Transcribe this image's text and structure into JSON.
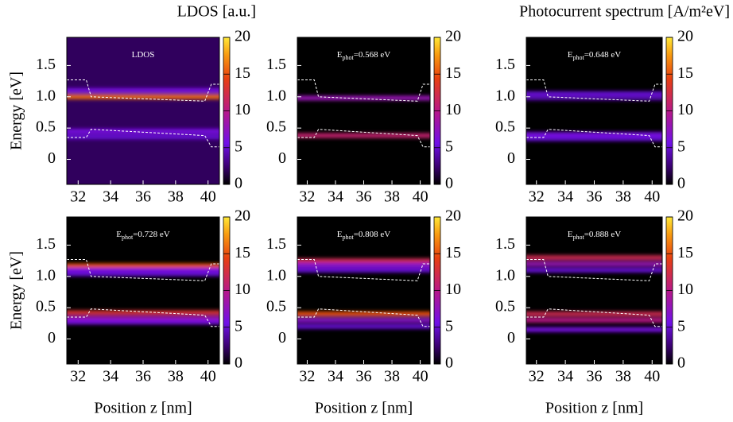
{
  "chart_data": [
    {
      "type": "heatmap",
      "title": "LDOS [a.u.]",
      "annotation": [
        "LDOS"
      ],
      "ylabel": "Energy [eV]",
      "xlim": [
        31.3,
        40.7
      ],
      "ylim": [
        -0.4,
        1.95
      ],
      "clim": [
        0,
        20
      ],
      "xticks": [
        32,
        34,
        36,
        38,
        40
      ],
      "yticks": [
        0,
        0.5,
        {
          "value": 1,
          "label": "1.0"
        },
        1.5
      ],
      "cticks": [
        0,
        5,
        10,
        15,
        20
      ],
      "base": 2,
      "bands": [
        {
          "y": 1.1,
          "value": 6
        },
        {
          "y": 1.0,
          "value": 16
        },
        {
          "y": 0.45,
          "value": 6
        },
        {
          "y": 0.36,
          "value": 5
        }
      ],
      "band_edges": {
        "x": [
          31.3,
          32.5,
          32.8,
          39.8,
          40.2,
          40.7
        ],
        "conduction": [
          1.27,
          1.27,
          1.0,
          0.93,
          1.2,
          1.2
        ],
        "valence": [
          0.35,
          0.35,
          0.48,
          0.38,
          0.2,
          0.2
        ]
      }
    },
    {
      "type": "heatmap",
      "annotation": [
        "E",
        "phot",
        "=0.568 eV"
      ],
      "xlim": [
        31.3,
        40.7
      ],
      "ylim": [
        -0.4,
        1.95
      ],
      "clim": [
        0,
        20
      ],
      "xticks": [
        32,
        34,
        36,
        38,
        40
      ],
      "yticks": [
        0,
        0.5,
        {
          "value": 1,
          "label": "1.0"
        },
        1.5
      ],
      "cticks": [
        0,
        5,
        10,
        15,
        20
      ],
      "base": 0,
      "bands": [
        {
          "y": 0.98,
          "value": 8
        },
        {
          "y": 0.38,
          "value": 11
        }
      ],
      "band_edges": {
        "x": [
          31.3,
          32.5,
          32.8,
          39.8,
          40.2,
          40.7
        ],
        "conduction": [
          1.27,
          1.27,
          1.0,
          0.93,
          1.2,
          1.2
        ],
        "valence": [
          0.35,
          0.35,
          0.48,
          0.38,
          0.2,
          0.2
        ]
      }
    },
    {
      "type": "heatmap",
      "title": "Photocurrent spectrum [A/m²eV]",
      "annotation": [
        "E",
        "phot",
        "=0.648 eV"
      ],
      "xlim": [
        31.3,
        40.7
      ],
      "ylim": [
        -0.4,
        1.95
      ],
      "clim": [
        0,
        20
      ],
      "xticks": [
        32,
        34,
        36,
        38,
        40
      ],
      "yticks": [
        0,
        0.5,
        {
          "value": 1,
          "label": "1.0"
        },
        1.5
      ],
      "cticks": [
        0,
        5,
        10,
        15,
        20
      ],
      "base": 0,
      "bands": [
        {
          "y": 1.05,
          "value": 5
        },
        {
          "y": 0.98,
          "value": 4
        },
        {
          "y": 0.4,
          "value": 6
        },
        {
          "y": 0.33,
          "value": 5
        }
      ],
      "band_edges": {
        "x": [
          31.3,
          32.5,
          32.8,
          39.8,
          40.2,
          40.7
        ],
        "conduction": [
          1.27,
          1.27,
          1.0,
          0.93,
          1.2,
          1.2
        ],
        "valence": [
          0.35,
          0.35,
          0.48,
          0.38,
          0.2,
          0.2
        ]
      }
    },
    {
      "type": "heatmap",
      "annotation": [
        "E",
        "phot",
        "=0.728 eV"
      ],
      "ylabel": "Energy [eV]",
      "xlabel": "Position z [nm]",
      "xlim": [
        31.3,
        40.7
      ],
      "ylim": [
        -0.4,
        1.95
      ],
      "clim": [
        0,
        20
      ],
      "xticks": [
        32,
        34,
        36,
        38,
        40
      ],
      "yticks": [
        0,
        0.5,
        {
          "value": 1,
          "label": "1.0"
        },
        1.5
      ],
      "cticks": [
        0,
        5,
        10,
        15,
        20
      ],
      "base": 0,
      "bands": [
        {
          "y": 1.17,
          "value": 15
        },
        {
          "y": 1.1,
          "value": 6
        },
        {
          "y": 1.04,
          "value": 5
        },
        {
          "y": 0.42,
          "value": 13
        },
        {
          "y": 0.33,
          "value": 8
        },
        {
          "y": 0.27,
          "value": 6
        }
      ],
      "band_edges": {
        "x": [
          31.3,
          32.5,
          32.8,
          39.8,
          40.2,
          40.7
        ],
        "conduction": [
          1.27,
          1.27,
          1.0,
          0.93,
          1.2,
          1.2
        ],
        "valence": [
          0.35,
          0.35,
          0.48,
          0.38,
          0.2,
          0.2
        ]
      }
    },
    {
      "type": "heatmap",
      "annotation": [
        "E",
        "phot",
        "=0.808 eV"
      ],
      "xlabel": "Position z [nm]",
      "xlim": [
        31.3,
        40.7
      ],
      "ylim": [
        -0.4,
        1.95
      ],
      "clim": [
        0,
        20
      ],
      "xticks": [
        32,
        34,
        36,
        38,
        40
      ],
      "yticks": [
        0,
        0.5,
        {
          "value": 1,
          "label": "1.0"
        },
        1.5
      ],
      "cticks": [
        0,
        5,
        10,
        15,
        20
      ],
      "base": 0,
      "bands": [
        {
          "y": 1.25,
          "value": 12
        },
        {
          "y": 1.18,
          "value": 7
        },
        {
          "y": 1.1,
          "value": 5
        },
        {
          "y": 0.4,
          "value": 15
        },
        {
          "y": 0.3,
          "value": 7
        },
        {
          "y": 0.2,
          "value": 5
        }
      ],
      "band_edges": {
        "x": [
          31.3,
          32.5,
          32.8,
          39.8,
          40.2,
          40.7
        ],
        "conduction": [
          1.27,
          1.27,
          1.0,
          0.93,
          1.2,
          1.2
        ],
        "valence": [
          0.35,
          0.35,
          0.48,
          0.38,
          0.2,
          0.2
        ]
      }
    },
    {
      "type": "heatmap",
      "annotation": [
        "E",
        "phot",
        "=0.888 eV"
      ],
      "xlabel": "Position z [nm]",
      "xlim": [
        31.3,
        40.7
      ],
      "ylim": [
        -0.4,
        1.95
      ],
      "clim": [
        0,
        20
      ],
      "xticks": [
        32,
        34,
        36,
        38,
        40
      ],
      "yticks": [
        0,
        0.5,
        {
          "value": 1,
          "label": "1.0"
        },
        1.5
      ],
      "cticks": [
        0,
        5,
        10,
        15,
        20
      ],
      "base": 0,
      "bands": [
        {
          "y": 1.3,
          "value": 12
        },
        {
          "y": 1.2,
          "value": 8
        },
        {
          "y": 1.1,
          "value": 5
        },
        {
          "y": 0.4,
          "value": 12
        },
        {
          "y": 0.3,
          "value": 10
        },
        {
          "y": 0.15,
          "value": 6
        }
      ],
      "band_edges": {
        "x": [
          31.3,
          32.5,
          32.8,
          39.8,
          40.2,
          40.7
        ],
        "conduction": [
          1.27,
          1.27,
          1.0,
          0.93,
          1.2,
          1.2
        ],
        "valence": [
          0.35,
          0.35,
          0.48,
          0.38,
          0.2,
          0.2
        ]
      }
    }
  ]
}
